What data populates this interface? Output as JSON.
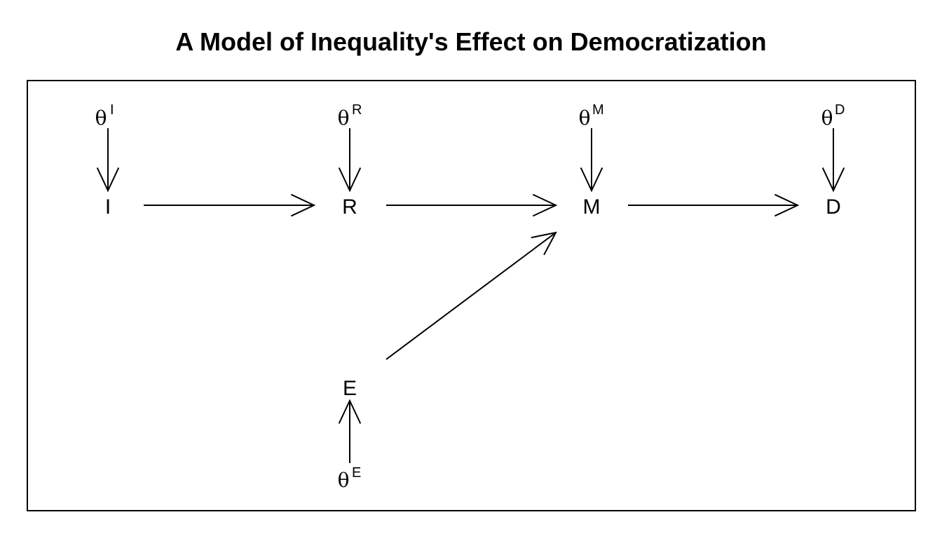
{
  "title": "A Model of Inequality's Effect on Democratization",
  "theta_symbol": "θ",
  "nodes": [
    {
      "id": "I",
      "label": "I",
      "exog": "I"
    },
    {
      "id": "R",
      "label": "R",
      "exog": "R"
    },
    {
      "id": "M",
      "label": "M",
      "exog": "M"
    },
    {
      "id": "D",
      "label": "D",
      "exog": "D"
    },
    {
      "id": "E",
      "label": "E",
      "exog": "E"
    }
  ],
  "edges": [
    {
      "from": "I",
      "to": "R"
    },
    {
      "from": "R",
      "to": "M"
    },
    {
      "from": "M",
      "to": "D"
    },
    {
      "from": "E",
      "to": "M"
    }
  ]
}
